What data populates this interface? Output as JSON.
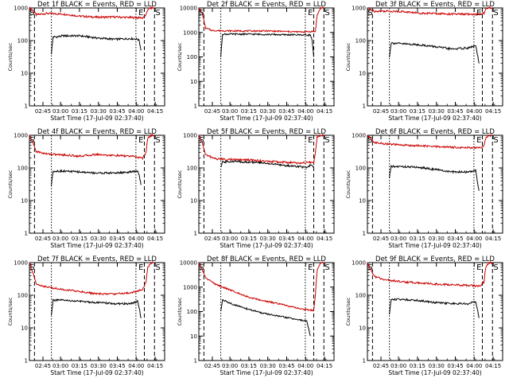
{
  "chart_data": [
    {
      "type": "line",
      "title": "Det 1f BLACK = Events, RED = LLD",
      "ylabel": "Counts/sec",
      "xlabel": "Start Time (17-Jul-09 02:37:40)",
      "ticks": [
        "02:45",
        "03:00",
        "03:15",
        "03:30",
        "03:45",
        "04:00",
        "04:15"
      ],
      "markers": [
        "S",
        "E",
        "S"
      ],
      "xlim": [
        0,
        40
      ],
      "ylim": [
        1,
        1000
      ],
      "scale": "log",
      "series": [
        {
          "color": "#cc0000",
          "x": [
            0,
            1,
            2,
            5,
            10,
            15,
            20,
            25,
            30,
            33.5,
            34.5,
            35,
            36,
            37
          ],
          "y": [
            1000,
            850,
            620,
            680,
            650,
            560,
            520,
            530,
            510,
            500,
            600,
            900,
            1000,
            1000
          ]
        },
        {
          "color": "#000000",
          "x": [
            6.5,
            7,
            8,
            10,
            15,
            20,
            25,
            30,
            32,
            32.5,
            33
          ],
          "y": [
            40,
            130,
            130,
            140,
            140,
            120,
            110,
            115,
            110,
            100,
            50
          ]
        }
      ]
    },
    {
      "type": "line",
      "title": "Det 2f BLACK = Events, RED = LLD",
      "ylabel": "Counts/sec",
      "xlabel": "Start Time (17-Jul-09 02:37:40)",
      "ticks": [
        "02:45",
        "03:00",
        "03:15",
        "03:30",
        "03:45",
        "04:00",
        "04:15"
      ],
      "markers": [
        "S",
        "E",
        "S"
      ],
      "xlim": [
        0,
        40
      ],
      "ylim": [
        1,
        10000
      ],
      "scale": "log",
      "series": [
        {
          "color": "#cc0000",
          "x": [
            0,
            1,
            2,
            4,
            10,
            15,
            20,
            25,
            30,
            34.5,
            35,
            36,
            37
          ],
          "y": [
            10000,
            6000,
            1500,
            1200,
            1150,
            1150,
            1150,
            1100,
            1050,
            1100,
            5000,
            10000,
            10000
          ]
        },
        {
          "color": "#000000",
          "x": [
            6.5,
            7,
            10,
            15,
            20,
            25,
            30,
            33,
            33.5,
            34
          ],
          "y": [
            100,
            850,
            850,
            850,
            830,
            800,
            800,
            780,
            500,
            100
          ]
        }
      ]
    },
    {
      "type": "line",
      "title": "Det 3f BLACK = Events, RED = LLD",
      "ylabel": "Counts/sec",
      "xlabel": "Start Time (17-Jul-09 02:37:40)",
      "ticks": [
        "02:45",
        "03:00",
        "03:15",
        "03:30",
        "03:45",
        "04:00",
        "04:15"
      ],
      "markers": [
        "S",
        "E",
        "S"
      ],
      "xlim": [
        0,
        40
      ],
      "ylim": [
        1,
        1000
      ],
      "scale": "log",
      "series": [
        {
          "color": "#cc0000",
          "x": [
            0,
            1,
            2,
            5,
            10,
            15,
            20,
            25,
            30,
            33.5,
            34.5,
            35,
            36,
            37
          ],
          "y": [
            1000,
            900,
            800,
            800,
            780,
            700,
            680,
            650,
            640,
            640,
            700,
            900,
            1000,
            1000
          ]
        },
        {
          "color": "#000000",
          "x": [
            6.5,
            7,
            10,
            15,
            20,
            25,
            30,
            32,
            32.5,
            33
          ],
          "y": [
            30,
            85,
            80,
            75,
            65,
            55,
            60,
            70,
            40,
            20
          ]
        }
      ]
    },
    {
      "type": "line",
      "title": "Det 4f BLACK = Events, RED = LLD",
      "ylabel": "Counts/sec",
      "xlabel": "Start Time (17-Jul-09 02:37:40)",
      "ticks": [
        "02:45",
        "03:00",
        "03:15",
        "03:30",
        "03:45",
        "04:00",
        "04:15"
      ],
      "markers": [
        "S",
        "E",
        "S"
      ],
      "xlim": [
        0,
        40
      ],
      "ylim": [
        1,
        1000
      ],
      "scale": "log",
      "series": [
        {
          "color": "#cc0000",
          "x": [
            0,
            1,
            2,
            5,
            10,
            15,
            20,
            25,
            30,
            33.5,
            34.5,
            35,
            36,
            37
          ],
          "y": [
            1000,
            600,
            320,
            270,
            250,
            230,
            260,
            240,
            230,
            200,
            300,
            800,
            1000,
            1000
          ]
        },
        {
          "color": "#000000",
          "x": [
            6.5,
            7,
            10,
            15,
            20,
            25,
            30,
            32,
            32.5,
            33
          ],
          "y": [
            30,
            80,
            80,
            75,
            70,
            70,
            75,
            80,
            60,
            30
          ]
        }
      ]
    },
    {
      "type": "line",
      "title": "Det 5f BLACK = Events, RED = LLD",
      "ylabel": "Counts/sec",
      "xlabel": "Start Time (17-Jul-09 02:37:40)",
      "ticks": [
        "02:45",
        "03:00",
        "03:15",
        "03:30",
        "03:45",
        "04:00",
        "04:15"
      ],
      "markers": [
        "S",
        "E",
        "S"
      ],
      "xlim": [
        0,
        40
      ],
      "ylim": [
        1,
        1000
      ],
      "scale": "log",
      "series": [
        {
          "color": "#cc0000",
          "x": [
            0,
            1,
            2,
            5,
            10,
            15,
            20,
            25,
            30,
            34,
            34.5,
            35,
            36,
            37
          ],
          "y": [
            1000,
            600,
            250,
            190,
            180,
            175,
            160,
            150,
            140,
            150,
            300,
            900,
            1000,
            1000
          ]
        },
        {
          "color": "#000000",
          "x": [
            6.5,
            7,
            10,
            15,
            20,
            25,
            30,
            32,
            33,
            34
          ],
          "y": [
            100,
            150,
            160,
            150,
            140,
            120,
            110,
            100,
            120,
            110
          ]
        }
      ]
    },
    {
      "type": "line",
      "title": "Det 6f BLACK = Events, RED = LLD",
      "ylabel": "Counts/sec",
      "xlabel": "Start Time (17-Jul-09 02:37:40)",
      "ticks": [
        "02:45",
        "03:00",
        "03:15",
        "03:30",
        "03:45",
        "04:00",
        "04:15"
      ],
      "markers": [
        "S",
        "E",
        "S"
      ],
      "xlim": [
        0,
        40
      ],
      "ylim": [
        1,
        1000
      ],
      "scale": "log",
      "series": [
        {
          "color": "#cc0000",
          "x": [
            0,
            1,
            2,
            5,
            10,
            15,
            20,
            25,
            30,
            33.5,
            34.5,
            35,
            36,
            37
          ],
          "y": [
            1000,
            800,
            600,
            550,
            500,
            480,
            450,
            430,
            420,
            410,
            500,
            850,
            1000,
            1000
          ]
        },
        {
          "color": "#000000",
          "x": [
            6.5,
            7,
            10,
            15,
            20,
            25,
            30,
            32,
            32.5,
            33
          ],
          "y": [
            50,
            110,
            110,
            105,
            90,
            75,
            75,
            85,
            40,
            20
          ]
        }
      ]
    },
    {
      "type": "line",
      "title": "Det 7f BLACK = Events, RED = LLD",
      "ylabel": "Counts/sec",
      "xlabel": "Start Time (17-Jul-09 02:37:40)",
      "ticks": [
        "02:45",
        "03:00",
        "03:15",
        "03:30",
        "03:45",
        "04:00",
        "04:15"
      ],
      "markers": [
        "S",
        "E",
        "S"
      ],
      "xlim": [
        0,
        40
      ],
      "ylim": [
        1,
        1000
      ],
      "scale": "log",
      "series": [
        {
          "color": "#cc0000",
          "x": [
            0,
            1,
            2,
            5,
            10,
            15,
            20,
            25,
            30,
            33.5,
            34.5,
            35,
            36,
            37
          ],
          "y": [
            1000,
            500,
            220,
            180,
            150,
            130,
            110,
            110,
            120,
            150,
            250,
            700,
            1000,
            1000
          ]
        },
        {
          "color": "#000000",
          "x": [
            6.5,
            7,
            10,
            15,
            20,
            25,
            30,
            32,
            32.5,
            33
          ],
          "y": [
            25,
            70,
            70,
            65,
            60,
            55,
            55,
            65,
            40,
            20
          ]
        }
      ]
    },
    {
      "type": "line",
      "title": "Det 8f BLACK = Events, RED = LLD",
      "ylabel": "Counts/sec",
      "xlabel": "Start Time (17-Jul-09 02:37:40)",
      "ticks": [
        "02:45",
        "03:00",
        "03:15",
        "03:30",
        "03:45",
        "04:00",
        "04:15"
      ],
      "markers": [
        "S",
        "E",
        "S"
      ],
      "xlim": [
        0,
        40
      ],
      "ylim": [
        1,
        10000
      ],
      "scale": "log",
      "series": [
        {
          "color": "#cc0000",
          "x": [
            0,
            1,
            2,
            5,
            10,
            15,
            20,
            25,
            30,
            34,
            34.5,
            35,
            36,
            37
          ],
          "y": [
            10000,
            5000,
            2400,
            1300,
            700,
            380,
            260,
            190,
            130,
            110,
            500,
            5000,
            10000,
            10000
          ]
        },
        {
          "color": "#000000",
          "x": [
            6.5,
            7,
            10,
            15,
            20,
            25,
            30,
            32,
            32.5,
            33
          ],
          "y": [
            100,
            300,
            200,
            120,
            80,
            60,
            45,
            40,
            20,
            10
          ]
        }
      ]
    },
    {
      "type": "line",
      "title": "Det 9f BLACK = Events, RED = LLD",
      "ylabel": "Counts/sec",
      "xlabel": "Start Time (17-Jul-09 02:37:40)",
      "ticks": [
        "02:45",
        "03:00",
        "03:15",
        "03:30",
        "03:45",
        "04:00",
        "04:15"
      ],
      "markers": [
        "S",
        "E",
        "S"
      ],
      "xlim": [
        0,
        40
      ],
      "ylim": [
        1,
        1000
      ],
      "scale": "log",
      "series": [
        {
          "color": "#cc0000",
          "x": [
            0,
            1,
            2,
            5,
            10,
            15,
            20,
            25,
            30,
            33.5,
            34.5,
            35,
            36,
            37
          ],
          "y": [
            1000,
            600,
            380,
            300,
            260,
            240,
            220,
            210,
            200,
            190,
            260,
            700,
            1000,
            1000
          ]
        },
        {
          "color": "#000000",
          "x": [
            6.5,
            7,
            10,
            15,
            20,
            25,
            30,
            32,
            32.5,
            33
          ],
          "y": [
            25,
            75,
            75,
            70,
            60,
            55,
            55,
            65,
            40,
            20
          ]
        }
      ]
    }
  ]
}
